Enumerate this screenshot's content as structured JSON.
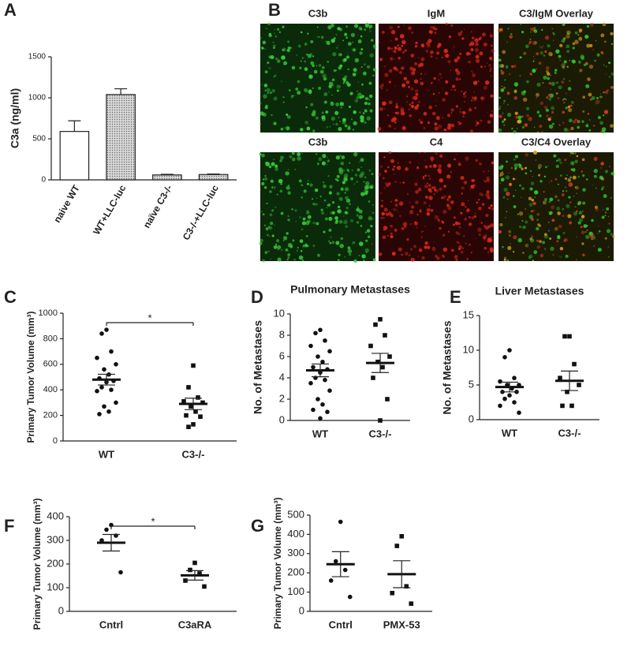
{
  "image_panel": {
    "label": "B",
    "titles": [
      "C3b",
      "IgM",
      "C3/IgM Overlay",
      "C3b",
      "C4",
      "C3/C4 Overlay"
    ]
  },
  "chart_data": [
    {
      "type": "bar",
      "panel_label": "A",
      "y_label": "C3a (ng/ml)",
      "categories": [
        "naive WT",
        "WT+LLC-luc",
        "naïve C3-/-",
        "C3-/-+LLC-luc"
      ],
      "values": [
        590,
        1040,
        60,
        65
      ],
      "errors": [
        130,
        70,
        8,
        6
      ],
      "colors": [
        "#ffffff",
        "#c4c4c4",
        "#c4c4c4",
        "#c4c4c4"
      ],
      "ylim": [
        0,
        1500
      ],
      "yticks": [
        0,
        500,
        1000,
        1500
      ]
    },
    {
      "type": "dot",
      "panel_label": "C",
      "y_label": "Primary Tumor Volume (mm³)",
      "significance": "*",
      "groups": [
        {
          "name": "WT",
          "points": [
            870,
            840,
            700,
            650,
            600,
            560,
            520,
            490,
            470,
            460,
            420,
            400,
            390,
            300,
            270,
            230,
            210
          ],
          "mean": 480,
          "sem": 42
        },
        {
          "name": "C3-/-",
          "points": [
            590,
            420,
            340,
            310,
            300,
            270,
            230,
            200,
            190,
            130,
            110
          ],
          "mean": 290,
          "sem": 45
        }
      ],
      "ylim": [
        0,
        1000
      ],
      "yticks": [
        0,
        200,
        400,
        600,
        800,
        1000
      ]
    },
    {
      "type": "dot",
      "panel_label": "D",
      "title": "Pulmonary Metastases",
      "y_label": "No. of Metastases",
      "groups": [
        {
          "name": "WT",
          "points": [
            8.5,
            8.2,
            7.5,
            7,
            6.5,
            6,
            5.5,
            5,
            4.8,
            4.5,
            4,
            3.8,
            3.5,
            2.8,
            2,
            1.5,
            1,
            0.8,
            0.2
          ],
          "mean": 4.7,
          "sem": 0.6
        },
        {
          "name": "C3-/-",
          "points": [
            9.5,
            9,
            8,
            7,
            6,
            5.5,
            5,
            4,
            2,
            0
          ],
          "mean": 5.4,
          "sem": 0.9
        }
      ],
      "ylim": [
        0,
        10
      ],
      "yticks": [
        0,
        2,
        4,
        6,
        8,
        10
      ]
    },
    {
      "type": "dot",
      "panel_label": "E",
      "title": "Liver Metastases",
      "y_label": "No. of Metastases",
      "groups": [
        {
          "name": "WT",
          "points": [
            10,
            9,
            6,
            5.5,
            5,
            5,
            4.5,
            4,
            4,
            3.5,
            3,
            2.5,
            2,
            1
          ],
          "mean": 4.7,
          "sem": 0.7
        },
        {
          "name": "C3-/-",
          "points": [
            12,
            12,
            8,
            6,
            5,
            4,
            2,
            2
          ],
          "mean": 5.6,
          "sem": 1.4
        }
      ],
      "ylim": [
        0,
        15
      ],
      "yticks": [
        0,
        5,
        10,
        15
      ]
    },
    {
      "type": "dot",
      "panel_label": "F",
      "y_label": "Primary Tumor Volume (mm³)",
      "significance": "*",
      "groups": [
        {
          "name": "Cntrl",
          "points": [
            365,
            345,
            320,
            300,
            165
          ],
          "mean": 290,
          "sem": 35
        },
        {
          "name": "C3aRA",
          "points": [
            205,
            175,
            160,
            130,
            105
          ],
          "mean": 152,
          "sem": 20
        }
      ],
      "ylim": [
        0,
        400
      ],
      "yticks": [
        0,
        100,
        200,
        300,
        400
      ]
    },
    {
      "type": "dot",
      "panel_label": "G",
      "y_label": "Primary Tumor Volume (mm³)",
      "groups": [
        {
          "name": "Cntrl",
          "points": [
            465,
            260,
            215,
            160,
            75
          ],
          "mean": 245,
          "sem": 65
        },
        {
          "name": "PMX-53",
          "points": [
            390,
            340,
            130,
            95,
            40
          ],
          "mean": 193,
          "sem": 70
        }
      ],
      "ylim": [
        0,
        500
      ],
      "yticks": [
        0,
        100,
        200,
        300,
        400,
        500
      ]
    }
  ]
}
